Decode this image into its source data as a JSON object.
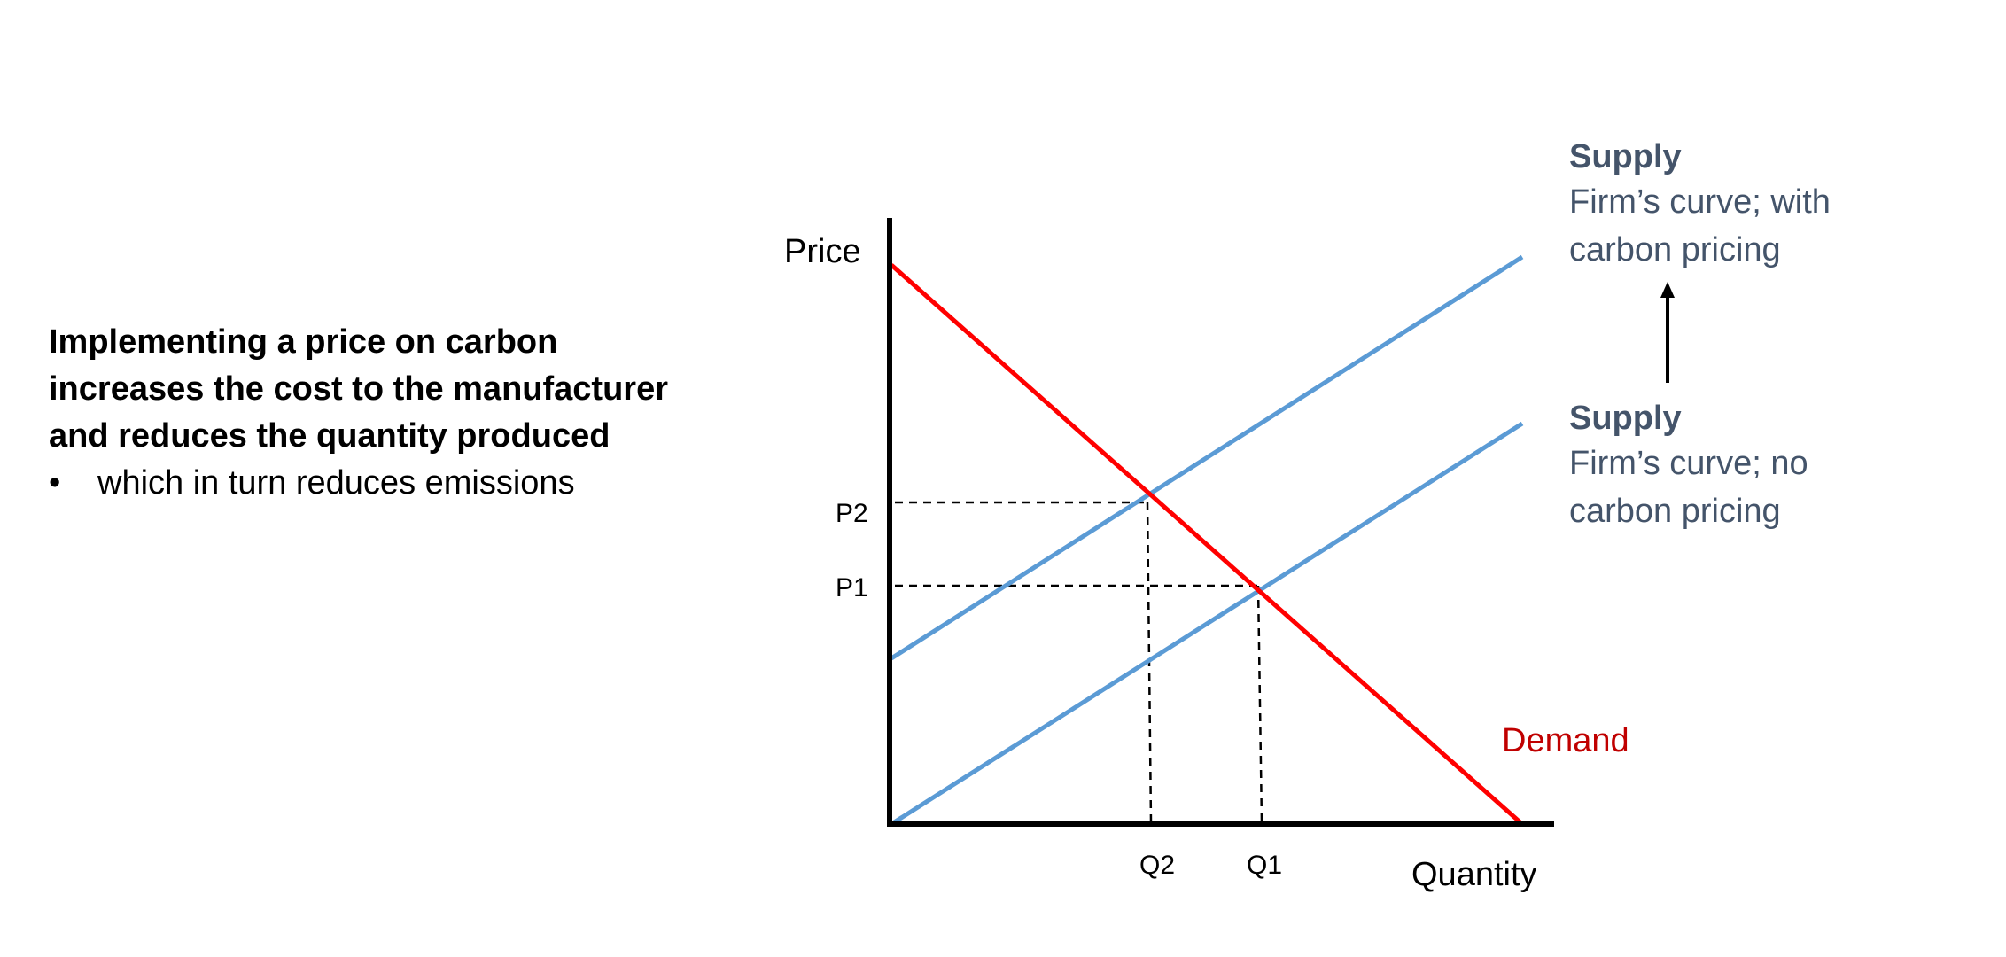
{
  "left_text": {
    "heading_lines": [
      "Implementing a price on carbon",
      "increases the cost to the manufacturer",
      "and reduces the quantity produced"
    ],
    "bullet_symbol": "•",
    "bullet": "which in turn reduces emissions"
  },
  "diagram": {
    "y_axis_label": "Price",
    "x_axis_label": "Quantity",
    "tick_labels": {
      "p2": "P2",
      "p1": "P1",
      "q2": "Q2",
      "q1": "Q1"
    },
    "demand_label": "Demand",
    "supply_with": {
      "title": "Supply",
      "desc_lines": [
        "Firm’s curve; with",
        "carbon pricing"
      ]
    },
    "supply_no": {
      "title": "Supply",
      "desc_lines": [
        "Firm’s curve; no",
        "carbon pricing"
      ]
    },
    "colors": {
      "demand": "#ff0000",
      "supply": "#5b9bd5",
      "axis": "#000000",
      "label_blue_gray": "#44546a",
      "demand_label": "#c00000"
    }
  }
}
